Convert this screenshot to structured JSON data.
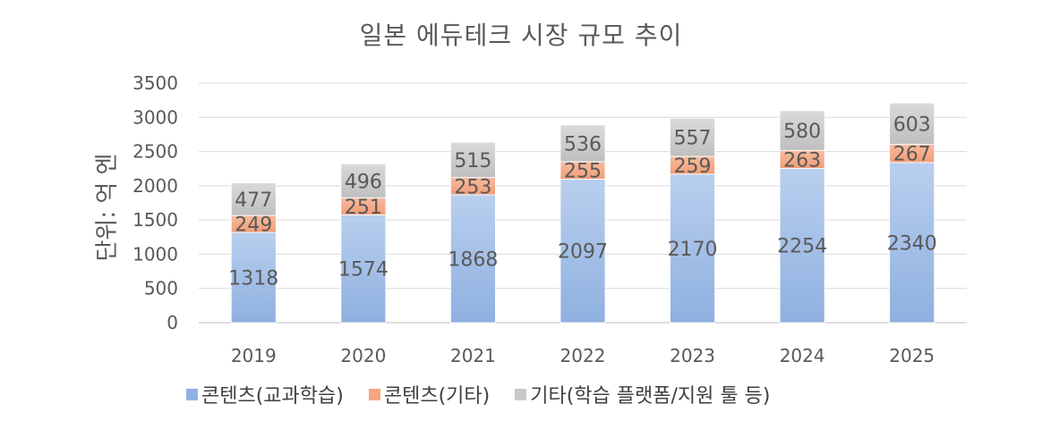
{
  "chart_data": {
    "type": "bar",
    "stacked": true,
    "title": "일본 에듀테크 시장 규모 추이",
    "ylabel": "단위: 억 엔",
    "xlabel": "",
    "ylim": [
      0,
      3500
    ],
    "yticks": [
      0,
      500,
      1000,
      1500,
      2000,
      2500,
      3000,
      3500
    ],
    "grid": true,
    "legend_position": "bottom",
    "categories": [
      "2019",
      "2020",
      "2021",
      "2022",
      "2023",
      "2024",
      "2025"
    ],
    "series": [
      {
        "name": "콘텐츠(교과학습)",
        "color": "#8fb4e3",
        "values": [
          1318,
          1574,
          1868,
          2097,
          2170,
          2254,
          2340
        ]
      },
      {
        "name": "콘텐츠(기타)",
        "color": "#f4a582",
        "values": [
          249,
          251,
          253,
          255,
          259,
          263,
          267
        ]
      },
      {
        "name": "기타(학습 플랫폼/지원 툴 등)",
        "color": "#c9c9c9",
        "values": [
          477,
          496,
          515,
          536,
          557,
          580,
          603
        ]
      }
    ]
  }
}
